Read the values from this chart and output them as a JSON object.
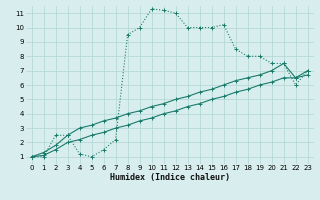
{
  "xlabel": "Humidex (Indice chaleur)",
  "bg_color": "#d8eeee",
  "grid_color": "#b0d4d4",
  "line_color": "#1a7a6a",
  "xlim": [
    -0.5,
    23.5
  ],
  "ylim": [
    0.5,
    11.5
  ],
  "xticks": [
    0,
    1,
    2,
    3,
    4,
    5,
    6,
    7,
    8,
    9,
    10,
    11,
    12,
    13,
    14,
    15,
    16,
    17,
    18,
    19,
    20,
    21,
    22,
    23
  ],
  "yticks": [
    1,
    2,
    3,
    4,
    5,
    6,
    7,
    8,
    9,
    10,
    11
  ],
  "s1_x": [
    0,
    1,
    2,
    3,
    4,
    5,
    6,
    7,
    8,
    9,
    10,
    11,
    12,
    13,
    14,
    15,
    16,
    17,
    18,
    19,
    20,
    21,
    22,
    23
  ],
  "s1_y": [
    1,
    1,
    2.5,
    2.5,
    1.2,
    1,
    1.5,
    2.2,
    9.5,
    10,
    11.3,
    11.2,
    11,
    10,
    10,
    10,
    10.2,
    8.5,
    8,
    8,
    7.5,
    7.5,
    6,
    7
  ],
  "s2_x": [
    0,
    1,
    2,
    3,
    4,
    5,
    6,
    7,
    8,
    9,
    10,
    11,
    12,
    13,
    14,
    15,
    16,
    17,
    18,
    19,
    20,
    21,
    22,
    23
  ],
  "s2_y": [
    1,
    1.3,
    1.8,
    2.5,
    3,
    3.2,
    3.5,
    3.7,
    4.0,
    4.2,
    4.5,
    4.7,
    5.0,
    5.2,
    5.5,
    5.7,
    6.0,
    6.3,
    6.5,
    6.7,
    7.0,
    7.5,
    6.5,
    7
  ],
  "s3_x": [
    0,
    1,
    2,
    3,
    4,
    5,
    6,
    7,
    8,
    9,
    10,
    11,
    12,
    13,
    14,
    15,
    16,
    17,
    18,
    19,
    20,
    21,
    22,
    23
  ],
  "s3_y": [
    1,
    1.1,
    1.5,
    2.0,
    2.2,
    2.5,
    2.7,
    3.0,
    3.2,
    3.5,
    3.7,
    4.0,
    4.2,
    4.5,
    4.7,
    5.0,
    5.2,
    5.5,
    5.7,
    6.0,
    6.2,
    6.5,
    6.5,
    6.7
  ]
}
